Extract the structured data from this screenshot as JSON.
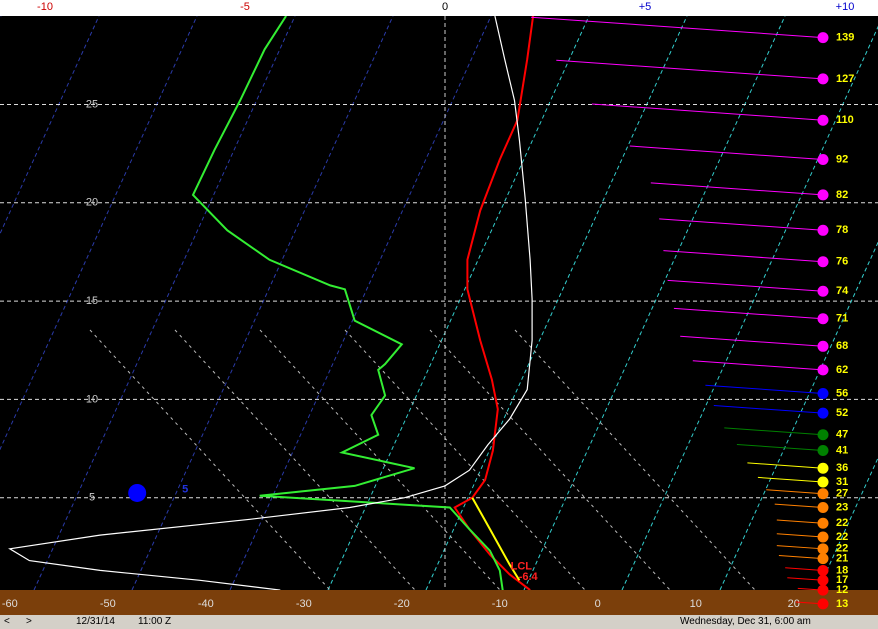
{
  "chart_data": {
    "type": "skew-t",
    "xlim": [
      -61,
      28.6
    ],
    "xticks": [
      -60,
      -50,
      -40,
      -30,
      -20,
      -10,
      0,
      10,
      20
    ],
    "ylim": [
      0,
      29.5
    ],
    "yticks": [
      5,
      10,
      15,
      20,
      25
    ],
    "grid": true,
    "top_lim": [
      -11.125,
      10.825
    ],
    "top_ticks": [
      -10,
      -5,
      0,
      {
        "value": 5,
        "label": "+5"
      },
      {
        "value": 10,
        "label": "+10"
      }
    ],
    "series": [
      {
        "color": "#ff0000",
        "x": [
          -6.6,
          -7.2,
          -8.2,
          -10,
          -12,
          -13.3,
          -13.3,
          -12,
          -10.8,
          -10.2,
          -10.7,
          -11.5,
          -12.8,
          -14.6,
          -13.1,
          -11,
          -9,
          -6.9
        ],
        "y": [
          29.5,
          27.3,
          24.2,
          22.2,
          19.6,
          17.1,
          15.6,
          13,
          11,
          9.5,
          7.4,
          5.9,
          5,
          4.5,
          3.4,
          2.1,
          1.1,
          0.3
        ]
      },
      {
        "color": "#33ee33",
        "x": [
          -31.8,
          -34.0,
          -36.5,
          -39.1,
          -41.3,
          -37.8,
          -33.5,
          -27.3,
          -25.8,
          -24.8,
          -20.0,
          -21.7,
          -22.4,
          -21.7,
          -23.1,
          -22.4,
          -26.1,
          -18.7,
          -24.8,
          -34.5,
          -15.1,
          -13.1,
          -11.0,
          -10.0,
          -9.7
        ],
        "y": [
          29.5,
          27.8,
          25.2,
          22.7,
          20.4,
          18.6,
          17.1,
          15.8,
          15.6,
          14.0,
          12.8,
          11.8,
          11.5,
          10.2,
          9.2,
          8.2,
          7.3,
          6.5,
          5.6,
          5.1,
          4.5,
          3.4,
          2.3,
          1.3,
          0.3
        ]
      },
      {
        "color": "#ffffff",
        "x": [
          -10.5,
          -9.5,
          -8.5,
          -8.0,
          -7.4,
          -6.9,
          -6.7,
          -6.7,
          -7.2,
          -9.0,
          -11.2,
          -13.1,
          -15.6,
          -19.7,
          -25.3,
          -35.5,
          -50.8,
          -60,
          -58.0,
          -50.8,
          -40.6,
          -32.4
        ],
        "y": [
          29.5,
          27.3,
          25.2,
          23.2,
          20.2,
          17.1,
          15.1,
          13.0,
          10.5,
          9.0,
          7.7,
          6.4,
          5.6,
          5.0,
          4.5,
          3.9,
          3.1,
          2.4,
          1.8,
          1.3,
          0.8,
          0.3
        ]
      },
      {
        "color": "#ffff00",
        "x": [
          -12.8,
          -11.0,
          -9.0,
          -8.0
        ],
        "y": [
          5.0,
          3.4,
          1.6,
          0.8
        ]
      }
    ],
    "markers": [
      {
        "x": -47.0,
        "y": 5.24,
        "color": "#0000ff"
      }
    ],
    "annotations": [
      {
        "text": "5",
        "x": -42.1,
        "y": 5.4,
        "color": "#2233dd"
      },
      {
        "text": "LCL",
        "x": -7.8,
        "y": 1.5,
        "color": "#ff2222"
      },
      {
        "text": "-6.4",
        "x": -7.1,
        "y": 0.95,
        "color": "#ff2222"
      }
    ],
    "winds": {
      "label_color": "#ffff00",
      "y": [
        28.4,
        26.3,
        24.2,
        22.2,
        20.4,
        18.6,
        17.0,
        15.5,
        14.1,
        12.7,
        11.5,
        10.3,
        9.3,
        8.2,
        7.4,
        6.5,
        5.8,
        5.2,
        4.5,
        3.7,
        3.0,
        2.4,
        1.9,
        1.3,
        0.8,
        0.3,
        -0.4
      ],
      "speeds": [
        139,
        127,
        110,
        92,
        82,
        78,
        76,
        74,
        71,
        68,
        62,
        56,
        52,
        47,
        41,
        36,
        31,
        27,
        23,
        22,
        22,
        22,
        21,
        18,
        17,
        12,
        13
      ],
      "colors": [
        "#ff00ff",
        "#ff00ff",
        "#ff00ff",
        "#ff00ff",
        "#ff00ff",
        "#ff00ff",
        "#ff00ff",
        "#ff00ff",
        "#ff00ff",
        "#ff00ff",
        "#ff00ff",
        "#0000ff",
        "#0000ff",
        "#008000",
        "#008000",
        "#ffff00",
        "#ffff00",
        "#ff8000",
        "#ff8000",
        "#ff8000",
        "#ff8000",
        "#ff8000",
        "#ff8000",
        "#ff0000",
        "#ff0000",
        "#ff0000",
        "#ff0000"
      ]
    }
  },
  "status": {
    "date": "12/31/14",
    "time": "11:00 Z",
    "local": "Wednesday,  Dec 31, 6:00 am"
  }
}
